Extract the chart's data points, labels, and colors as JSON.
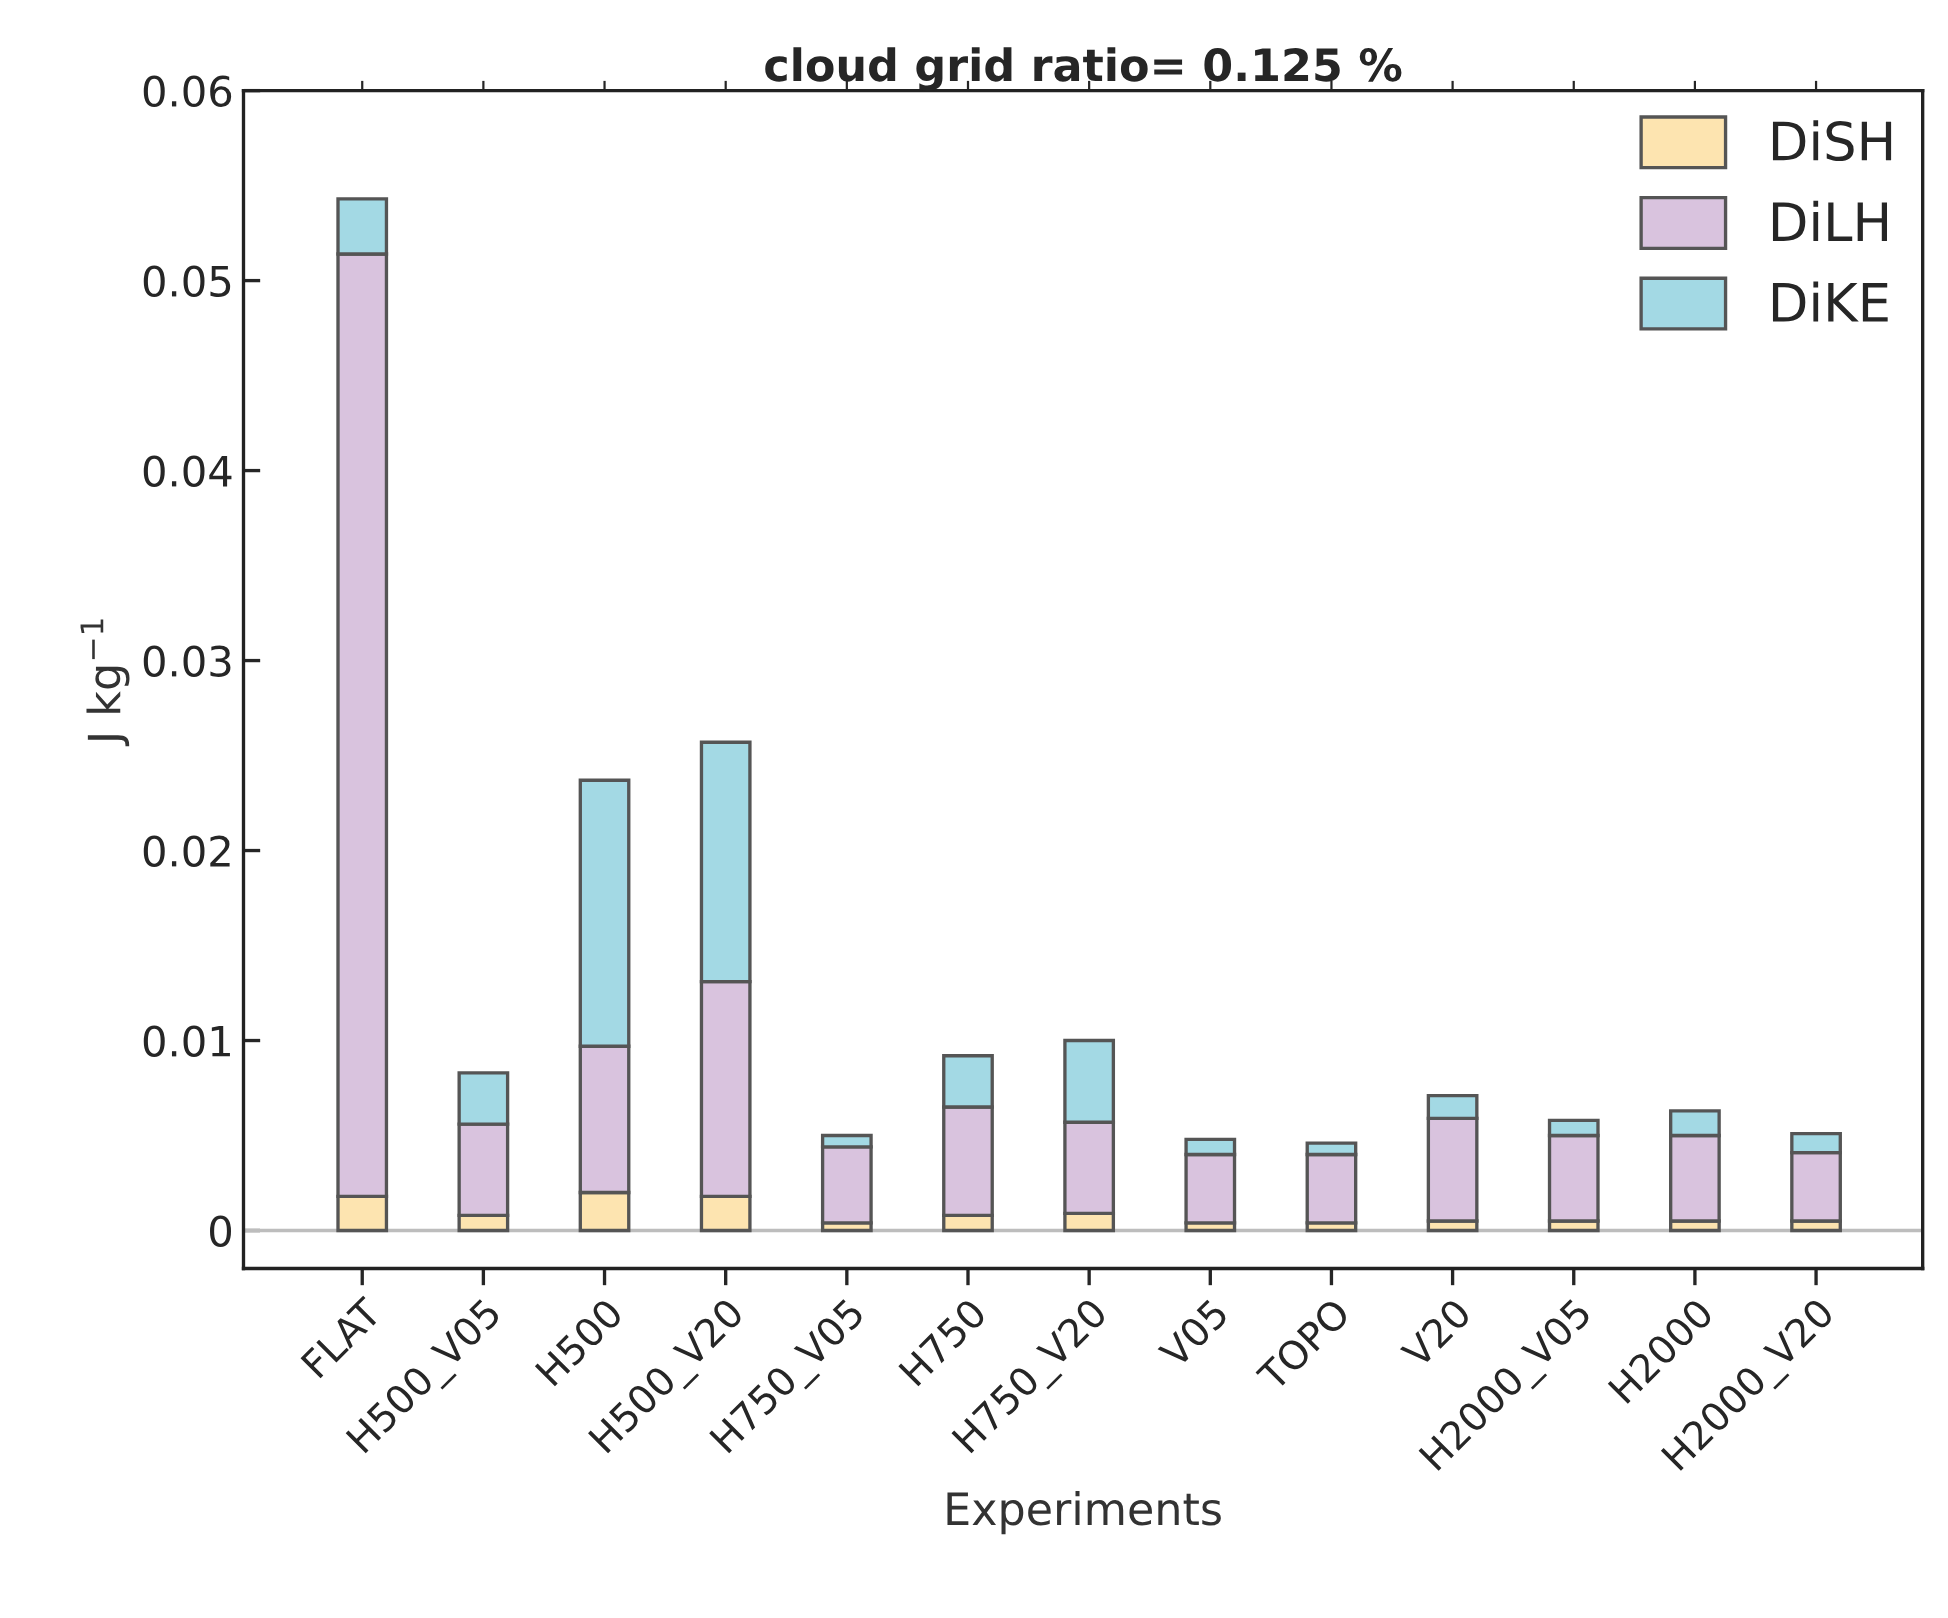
{
  "chart_data": {
    "type": "bar",
    "title": "cloud grid ratio= 0.125 %",
    "xlabel": "Experiments",
    "ylabel": "J kg$^{−1}$",
    "categories": [
      "FLAT",
      "H500_V05",
      "H500",
      "H500_V20",
      "H750_V05",
      "H750",
      "H750_V20",
      "V05",
      "TOPO",
      "V20",
      "H2000_V05",
      "H2000",
      "H2000_V20"
    ],
    "stacked": true,
    "series": [
      {
        "name": "DiSH",
        "color": "#fde4b0",
        "values": [
          0.0018,
          0.0008,
          0.002,
          0.0018,
          0.0004,
          0.0008,
          0.0009,
          0.0004,
          0.0004,
          0.0005,
          0.0005,
          0.0005,
          0.0005
        ]
      },
      {
        "name": "DiLH",
        "color": "#d9c3de",
        "values": [
          0.0496,
          0.0048,
          0.0077,
          0.0113,
          0.004,
          0.0057,
          0.0048,
          0.0036,
          0.0036,
          0.0054,
          0.0045,
          0.0045,
          0.0036
        ]
      },
      {
        "name": "DiKE",
        "color": "#a3d9e4",
        "values": [
          0.0029,
          0.0027,
          0.014,
          0.0126,
          0.0006,
          0.0027,
          0.0043,
          0.0008,
          0.0006,
          0.0012,
          0.0008,
          0.0013,
          0.001
        ]
      }
    ],
    "ylim": [
      -0.002,
      0.06
    ],
    "yticks": [
      0,
      0.01,
      0.02,
      0.03,
      0.04,
      0.05,
      0.06
    ],
    "ref_lines": [
      {
        "axis": "y",
        "value": 0,
        "color": "#bdbdbd"
      }
    ],
    "grid": false,
    "legend": "top right"
  }
}
